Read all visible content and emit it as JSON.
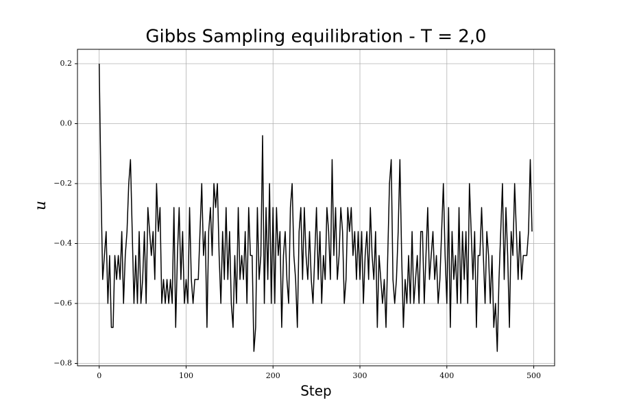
{
  "chart_data": {
    "type": "line",
    "title": "Gibbs Sampling equilibration - T = 2,0",
    "x_label": "Step",
    "y_label": "u",
    "x": [
      0,
      2,
      4,
      6,
      8,
      10,
      12,
      14,
      16,
      18,
      20,
      22,
      24,
      26,
      28,
      30,
      32,
      34,
      36,
      38,
      40,
      42,
      44,
      46,
      48,
      50,
      52,
      54,
      56,
      58,
      60,
      62,
      64,
      66,
      68,
      70,
      72,
      74,
      76,
      78,
      80,
      82,
      84,
      86,
      88,
      90,
      92,
      94,
      96,
      98,
      100,
      102,
      104,
      106,
      108,
      110,
      112,
      114,
      116,
      118,
      120,
      122,
      124,
      126,
      128,
      130,
      132,
      134,
      136,
      138,
      140,
      142,
      144,
      146,
      148,
      150,
      152,
      154,
      156,
      158,
      160,
      162,
      164,
      166,
      168,
      170,
      172,
      174,
      176,
      178,
      180,
      182,
      184,
      186,
      188,
      190,
      192,
      194,
      196,
      198,
      200,
      202,
      204,
      206,
      208,
      210,
      212,
      214,
      216,
      218,
      220,
      222,
      224,
      226,
      228,
      230,
      232,
      234,
      236,
      238,
      240,
      242,
      244,
      246,
      248,
      250,
      252,
      254,
      256,
      258,
      260,
      262,
      264,
      266,
      268,
      270,
      272,
      274,
      276,
      278,
      280,
      282,
      284,
      286,
      288,
      290,
      292,
      294,
      296,
      298,
      300,
      302,
      304,
      306,
      308,
      310,
      312,
      314,
      316,
      318,
      320,
      322,
      324,
      326,
      328,
      330,
      332,
      334,
      336,
      338,
      340,
      342,
      344,
      346,
      348,
      350,
      352,
      354,
      356,
      358,
      360,
      362,
      364,
      366,
      368,
      370,
      372,
      374,
      376,
      378,
      380,
      382,
      384,
      386,
      388,
      390,
      392,
      394,
      396,
      398,
      400,
      402,
      404,
      406,
      408,
      410,
      412,
      414,
      416,
      418,
      420,
      422,
      424,
      426,
      428,
      430,
      432,
      434,
      436,
      438,
      440,
      442,
      444,
      446,
      448,
      450,
      452,
      454,
      456,
      458,
      460,
      462,
      464,
      466,
      468,
      470,
      472,
      474,
      476,
      478,
      480,
      482,
      484,
      486,
      488,
      490,
      492,
      494,
      496,
      498
    ],
    "series": [
      {
        "color": "#000000",
        "values": [
          0.2,
          -0.2,
          -0.52,
          -0.44,
          -0.36,
          -0.6,
          -0.44,
          -0.68,
          -0.68,
          -0.44,
          -0.52,
          -0.44,
          -0.52,
          -0.36,
          -0.6,
          -0.44,
          -0.36,
          -0.2,
          -0.12,
          -0.36,
          -0.6,
          -0.44,
          -0.6,
          -0.36,
          -0.6,
          -0.52,
          -0.36,
          -0.6,
          -0.28,
          -0.36,
          -0.44,
          -0.36,
          -0.52,
          -0.2,
          -0.36,
          -0.28,
          -0.6,
          -0.52,
          -0.6,
          -0.52,
          -0.6,
          -0.52,
          -0.6,
          -0.28,
          -0.68,
          -0.44,
          -0.28,
          -0.52,
          -0.36,
          -0.6,
          -0.52,
          -0.6,
          -0.28,
          -0.52,
          -0.6,
          -0.52,
          -0.52,
          -0.52,
          -0.36,
          -0.2,
          -0.44,
          -0.36,
          -0.68,
          -0.36,
          -0.28,
          -0.44,
          -0.2,
          -0.28,
          -0.2,
          -0.44,
          -0.6,
          -0.36,
          -0.52,
          -0.28,
          -0.52,
          -0.36,
          -0.6,
          -0.68,
          -0.44,
          -0.6,
          -0.28,
          -0.52,
          -0.44,
          -0.52,
          -0.36,
          -0.6,
          -0.28,
          -0.44,
          -0.44,
          -0.76,
          -0.68,
          -0.28,
          -0.52,
          -0.44,
          -0.04,
          -0.6,
          -0.28,
          -0.52,
          -0.2,
          -0.6,
          -0.28,
          -0.6,
          -0.28,
          -0.44,
          -0.36,
          -0.68,
          -0.44,
          -0.36,
          -0.52,
          -0.6,
          -0.28,
          -0.2,
          -0.44,
          -0.52,
          -0.68,
          -0.36,
          -0.28,
          -0.52,
          -0.28,
          -0.44,
          -0.52,
          -0.36,
          -0.52,
          -0.6,
          -0.44,
          -0.28,
          -0.52,
          -0.36,
          -0.6,
          -0.44,
          -0.52,
          -0.28,
          -0.36,
          -0.52,
          -0.12,
          -0.44,
          -0.28,
          -0.52,
          -0.44,
          -0.28,
          -0.36,
          -0.6,
          -0.52,
          -0.28,
          -0.36,
          -0.28,
          -0.44,
          -0.36,
          -0.52,
          -0.36,
          -0.52,
          -0.36,
          -0.6,
          -0.44,
          -0.36,
          -0.52,
          -0.28,
          -0.44,
          -0.52,
          -0.36,
          -0.68,
          -0.44,
          -0.52,
          -0.6,
          -0.52,
          -0.68,
          -0.44,
          -0.2,
          -0.12,
          -0.52,
          -0.6,
          -0.52,
          -0.36,
          -0.12,
          -0.44,
          -0.68,
          -0.52,
          -0.6,
          -0.44,
          -0.6,
          -0.36,
          -0.6,
          -0.52,
          -0.44,
          -0.6,
          -0.36,
          -0.36,
          -0.6,
          -0.44,
          -0.28,
          -0.52,
          -0.44,
          -0.36,
          -0.52,
          -0.44,
          -0.6,
          -0.52,
          -0.36,
          -0.2,
          -0.44,
          -0.6,
          -0.28,
          -0.68,
          -0.36,
          -0.52,
          -0.44,
          -0.6,
          -0.28,
          -0.6,
          -0.36,
          -0.52,
          -0.36,
          -0.6,
          -0.2,
          -0.36,
          -0.52,
          -0.36,
          -0.68,
          -0.44,
          -0.44,
          -0.28,
          -0.44,
          -0.6,
          -0.36,
          -0.44,
          -0.6,
          -0.44,
          -0.68,
          -0.6,
          -0.76,
          -0.52,
          -0.36,
          -0.2,
          -0.52,
          -0.28,
          -0.44,
          -0.68,
          -0.36,
          -0.44,
          -0.2,
          -0.36,
          -0.52,
          -0.36,
          -0.52,
          -0.44,
          -0.44,
          -0.44,
          -0.36,
          -0.12,
          -0.36
        ]
      }
    ],
    "xlim": [
      -25,
      524
    ],
    "ylim": [
      -0.808,
      0.248
    ],
    "xticks": [
      0,
      100,
      200,
      300,
      400,
      500
    ],
    "yticks": [
      {
        "value": -0.8,
        "label": "−0.8"
      },
      {
        "value": -0.6,
        "label": "−0.6"
      },
      {
        "value": -0.4,
        "label": "−0.4"
      },
      {
        "value": -0.2,
        "label": "−0.2"
      },
      {
        "value": 0,
        "label": "0.0"
      },
      0.2
    ],
    "grid": true
  }
}
